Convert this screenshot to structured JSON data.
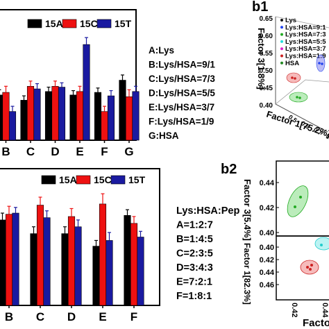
{
  "colors": {
    "15A": "#000000",
    "15C": "#ee1111",
    "15T": "#1a1aa0"
  },
  "chart_data": [
    {
      "type": "bar",
      "panel": "top-left",
      "categories": [
        "A",
        "B",
        "C",
        "D",
        "E",
        "F",
        "G"
      ],
      "visible_categories": [
        "B",
        "C",
        "D",
        "E",
        "F",
        "G"
      ],
      "legend": [
        "15A",
        "15C",
        "15T"
      ],
      "series": [
        {
          "name": "15A",
          "values": [
            null,
            0.52,
            0.46,
            0.56,
            0.52,
            0.55,
            0.69
          ]
        },
        {
          "name": "15C",
          "values": [
            null,
            0.55,
            0.62,
            0.62,
            0.56,
            0.33,
            0.5
          ]
        },
        {
          "name": "15T",
          "values": [
            null,
            0.33,
            0.59,
            0.61,
            1.1,
            0.51,
            0.56
          ]
        }
      ],
      "errors": [
        {
          "name": "15A",
          "values": [
            null,
            0.06,
            0.05,
            0.05,
            0.05,
            0.05,
            0.06
          ]
        },
        {
          "name": "15C",
          "values": [
            null,
            0.07,
            0.06,
            0.06,
            0.06,
            0.06,
            0.08
          ]
        },
        {
          "name": "15T",
          "values": [
            null,
            0.06,
            0.06,
            0.05,
            0.08,
            0.06,
            0.06
          ]
        }
      ],
      "ylim": [
        0,
        1.5
      ],
      "key": [
        "A:Lys",
        "B:Lys/HSA=9/1",
        "C:Lys/HSA=7/3",
        "D:Lys/HSA=5/5",
        "E:Lys/HSA=3/7",
        "F:Lys/HSA=1/9",
        "G:HSA"
      ]
    },
    {
      "type": "bar",
      "panel": "bottom-left",
      "categories": [
        "A",
        "B",
        "C",
        "D",
        "E",
        "F"
      ],
      "visible_categories": [
        "B",
        "C",
        "D",
        "E",
        "F"
      ],
      "legend": [
        "15A",
        "15C",
        "15T"
      ],
      "series": [
        {
          "name": "15A",
          "values": [
            null,
            0.75,
            0.63,
            0.63,
            0.52,
            0.79
          ]
        },
        {
          "name": "15C",
          "values": [
            null,
            0.8,
            0.88,
            0.78,
            0.89,
            0.72
          ]
        },
        {
          "name": "15T",
          "values": [
            null,
            0.81,
            0.77,
            0.69,
            0.57,
            0.6
          ]
        }
      ],
      "errors": [
        {
          "name": "15A",
          "values": [
            null,
            0.06,
            0.06,
            0.06,
            0.05,
            0.05
          ]
        },
        {
          "name": "15C",
          "values": [
            null,
            0.07,
            0.07,
            0.07,
            0.09,
            0.06
          ]
        },
        {
          "name": "15T",
          "values": [
            null,
            0.05,
            0.06,
            0.06,
            0.07,
            0.05
          ]
        }
      ],
      "ylim": [
        0,
        1.2
      ],
      "key": [
        "Lys:HSA:Pep",
        "A=1:2:7",
        "B=1:4:5",
        "C=2:3:5",
        "D=3:4:3",
        "E=7:2:1",
        "F=1:8:1"
      ]
    },
    {
      "type": "scatter",
      "panel": "b1",
      "title": "b1",
      "ylabel": "Factor 3[1.8%]",
      "xlabel": "Factor 1[75.2%]",
      "yticks": [
        "0.65",
        "0.60",
        "0.55",
        "0.50",
        "0.45",
        "0.40"
      ],
      "xticks": [
        "0.5",
        "0.6",
        "0.7",
        "0.8"
      ],
      "legend": [
        {
          "name": "Lys",
          "color": "#111111"
        },
        {
          "name": "Lys:HSA=9:1",
          "color": "#2244ee"
        },
        {
          "name": "Lys:HSA=7:3",
          "color": "#22aa22"
        },
        {
          "name": "Lys:HSA=5:5",
          "color": "#22dddd"
        },
        {
          "name": "Lys:HSA=3:7",
          "color": "#dd22cc"
        },
        {
          "name": "Lys:HSA=1:9",
          "color": "#cc2222"
        },
        {
          "name": "HSA",
          "color": "#228822"
        }
      ]
    },
    {
      "type": "scatter",
      "panel": "b2",
      "title": "b2",
      "ylabel": "Factor 3[5.4%]",
      "ylabel2": "Factor 1[82.3%]",
      "xlabel": "Factor",
      "yticks_upper": [
        "0.44",
        "0.42",
        "0.40"
      ],
      "yticks_lower": [
        "0.40",
        "0.42",
        "0.44",
        "0.46"
      ],
      "xticks": [
        "0.42",
        "0.44"
      ]
    }
  ]
}
